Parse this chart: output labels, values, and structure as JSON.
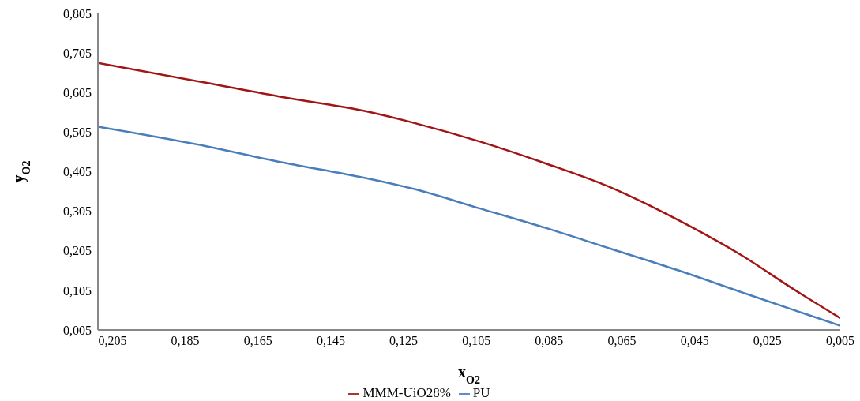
{
  "chart_data": {
    "type": "line",
    "xlabel": "x$_{O2}$",
    "ylabel": "y$_{O2}$",
    "x": [
      0.209,
      0.18,
      0.158,
      0.136,
      0.122,
      0.104,
      0.086,
      0.068,
      0.05,
      0.032,
      0.018,
      0.005
    ],
    "series": [
      {
        "name": "PU",
        "color": "#4a7ebb",
        "values": [
          0.519,
          0.471,
          0.428,
          0.39,
          0.361,
          0.312,
          0.263,
          0.21,
          0.157,
          0.1,
          0.056,
          0.016
        ]
      },
      {
        "name": "MMM-UiO28%",
        "color": "#a31515",
        "values": [
          0.68,
          0.631,
          0.593,
          0.559,
          0.528,
          0.481,
          0.426,
          0.365,
          0.285,
          0.193,
          0.109,
          0.035
        ]
      }
    ],
    "xlim": [
      0.209,
      0.005
    ],
    "xticks": [
      {
        "value": 0.205,
        "label": "0,205"
      },
      {
        "value": 0.185,
        "label": "0,185"
      },
      {
        "value": 0.165,
        "label": "0,165"
      },
      {
        "value": 0.145,
        "label": "0,145"
      },
      {
        "value": 0.125,
        "label": "0,125"
      },
      {
        "value": 0.105,
        "label": "0,105"
      },
      {
        "value": 0.085,
        "label": "0,085"
      },
      {
        "value": 0.065,
        "label": "0,065"
      },
      {
        "value": 0.045,
        "label": "0,045"
      },
      {
        "value": 0.025,
        "label": "0,025"
      },
      {
        "value": 0.005,
        "label": "0,005"
      }
    ],
    "ylim": [
      0.005,
      0.805
    ],
    "yticks": [
      {
        "value": 0.005,
        "label": "0,005"
      },
      {
        "value": 0.105,
        "label": "0,105"
      },
      {
        "value": 0.205,
        "label": "0,205"
      },
      {
        "value": 0.305,
        "label": "0,305"
      },
      {
        "value": 0.405,
        "label": "0,405"
      },
      {
        "value": 0.505,
        "label": "0,505"
      },
      {
        "value": 0.605,
        "label": "0,605"
      },
      {
        "value": 0.705,
        "label": "0,705"
      },
      {
        "value": 0.805,
        "label": "0,805"
      }
    ],
    "grid": false,
    "legend": "bottom",
    "marker": "none",
    "line_style": "solid"
  }
}
